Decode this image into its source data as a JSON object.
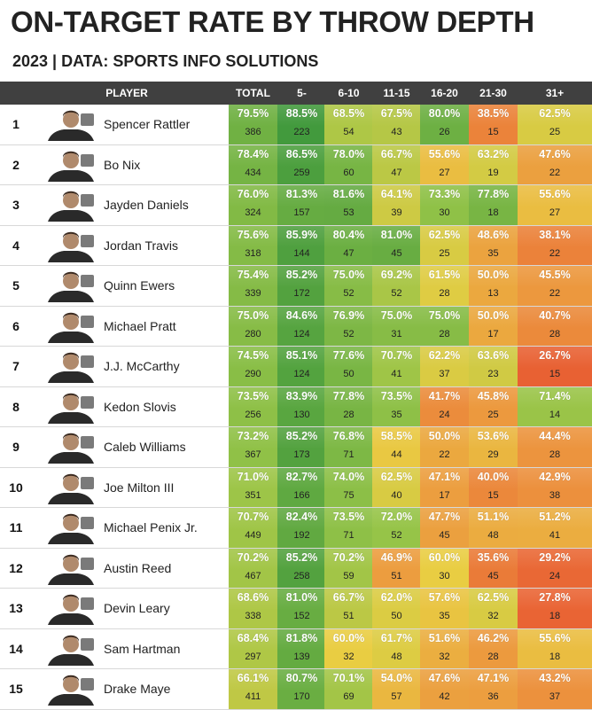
{
  "title": "ON-TARGET RATE BY THROW DEPTH",
  "subtitle": "2023 | DATA: SPORTS INFO SOLUTIONS",
  "chart_data": {
    "type": "table",
    "title": "ON-TARGET RATE BY THROW DEPTH",
    "subtitle": "2023 | DATA: SPORTS INFO SOLUTIONS",
    "player_header": "PLAYER",
    "columns": [
      "TOTAL",
      "5-",
      "6-10",
      "11-15",
      "16-20",
      "21-30",
      "31+"
    ],
    "rows": [
      {
        "rank": "1",
        "player": "Spencer Rattler",
        "team_icon": "south-carolina-logo",
        "pct": [
          "79.5%",
          "88.5%",
          "68.5%",
          "67.5%",
          "80.0%",
          "38.5%",
          "62.5%"
        ],
        "pv": [
          79.5,
          88.5,
          68.5,
          67.5,
          80.0,
          38.5,
          62.5
        ],
        "counts": [
          "386",
          "223",
          "54",
          "43",
          "26",
          "15",
          "25"
        ]
      },
      {
        "rank": "2",
        "player": "Bo Nix",
        "team_icon": "oregon-logo",
        "pct": [
          "78.4%",
          "86.5%",
          "78.0%",
          "66.7%",
          "55.6%",
          "63.2%",
          "47.6%"
        ],
        "pv": [
          78.4,
          86.5,
          78.0,
          66.7,
          55.6,
          63.2,
          47.6
        ],
        "counts": [
          "434",
          "259",
          "60",
          "47",
          "27",
          "19",
          "22"
        ]
      },
      {
        "rank": "3",
        "player": "Jayden Daniels",
        "team_icon": "lsu-logo",
        "pct": [
          "76.0%",
          "81.3%",
          "81.6%",
          "64.1%",
          "73.3%",
          "77.8%",
          "55.6%"
        ],
        "pv": [
          76.0,
          81.3,
          81.6,
          64.1,
          73.3,
          77.8,
          55.6
        ],
        "counts": [
          "324",
          "157",
          "53",
          "39",
          "30",
          "18",
          "27"
        ]
      },
      {
        "rank": "4",
        "player": "Jordan Travis",
        "team_icon": "florida-state-logo",
        "pct": [
          "75.6%",
          "85.9%",
          "80.4%",
          "81.0%",
          "62.5%",
          "48.6%",
          "38.1%"
        ],
        "pv": [
          75.6,
          85.9,
          80.4,
          81.0,
          62.5,
          48.6,
          38.1
        ],
        "counts": [
          "318",
          "144",
          "47",
          "45",
          "25",
          "35",
          "22"
        ]
      },
      {
        "rank": "5",
        "player": "Quinn Ewers",
        "team_icon": "texas-logo",
        "pct": [
          "75.4%",
          "85.2%",
          "75.0%",
          "69.2%",
          "61.5%",
          "50.0%",
          "45.5%"
        ],
        "pv": [
          75.4,
          85.2,
          75.0,
          69.2,
          61.5,
          50.0,
          45.5
        ],
        "counts": [
          "339",
          "172",
          "52",
          "52",
          "28",
          "13",
          "22"
        ]
      },
      {
        "rank": "6",
        "player": "Michael Pratt",
        "team_icon": "tulane-logo",
        "pct": [
          "75.0%",
          "84.6%",
          "76.9%",
          "75.0%",
          "75.0%",
          "50.0%",
          "40.7%"
        ],
        "pv": [
          75.0,
          84.6,
          76.9,
          75.0,
          75.0,
          50.0,
          40.7
        ],
        "counts": [
          "280",
          "124",
          "52",
          "31",
          "28",
          "17",
          "28"
        ]
      },
      {
        "rank": "7",
        "player": "J.J. McCarthy",
        "team_icon": "michigan-logo",
        "pct": [
          "74.5%",
          "85.1%",
          "77.6%",
          "70.7%",
          "62.2%",
          "63.6%",
          "26.7%"
        ],
        "pv": [
          74.5,
          85.1,
          77.6,
          70.7,
          62.2,
          63.6,
          26.7
        ],
        "counts": [
          "290",
          "124",
          "50",
          "41",
          "37",
          "23",
          "15"
        ]
      },
      {
        "rank": "8",
        "player": "Kedon Slovis",
        "team_icon": "byu-logo",
        "pct": [
          "73.5%",
          "83.9%",
          "77.8%",
          "73.5%",
          "41.7%",
          "45.8%",
          "71.4%"
        ],
        "pv": [
          73.5,
          83.9,
          77.8,
          73.5,
          41.7,
          45.8,
          71.4
        ],
        "counts": [
          "256",
          "130",
          "28",
          "35",
          "24",
          "25",
          "14"
        ]
      },
      {
        "rank": "9",
        "player": "Caleb Williams",
        "team_icon": "usc-logo",
        "pct": [
          "73.2%",
          "85.2%",
          "76.8%",
          "58.5%",
          "50.0%",
          "53.6%",
          "44.4%"
        ],
        "pv": [
          73.2,
          85.2,
          76.8,
          58.5,
          50.0,
          53.6,
          44.4
        ],
        "counts": [
          "367",
          "173",
          "71",
          "44",
          "22",
          "29",
          "28"
        ]
      },
      {
        "rank": "10",
        "player": "Joe Milton III",
        "team_icon": "tennessee-logo",
        "pct": [
          "71.0%",
          "82.7%",
          "74.0%",
          "62.5%",
          "47.1%",
          "40.0%",
          "42.9%"
        ],
        "pv": [
          71.0,
          82.7,
          74.0,
          62.5,
          47.1,
          40.0,
          42.9
        ],
        "counts": [
          "351",
          "166",
          "75",
          "40",
          "17",
          "15",
          "38"
        ]
      },
      {
        "rank": "11",
        "player": "Michael Penix Jr.",
        "team_icon": "washington-logo",
        "pct": [
          "70.7%",
          "82.4%",
          "73.5%",
          "72.0%",
          "47.7%",
          "51.1%",
          "51.2%"
        ],
        "pv": [
          70.7,
          82.4,
          73.5,
          72.0,
          47.7,
          51.1,
          51.2
        ],
        "counts": [
          "449",
          "192",
          "71",
          "52",
          "45",
          "48",
          "41"
        ]
      },
      {
        "rank": "12",
        "player": "Austin Reed",
        "team_icon": "western-kentucky-logo",
        "pct": [
          "70.2%",
          "85.2%",
          "70.2%",
          "46.9%",
          "60.0%",
          "35.6%",
          "29.2%"
        ],
        "pv": [
          70.2,
          85.2,
          70.2,
          46.9,
          60.0,
          35.6,
          29.2
        ],
        "counts": [
          "467",
          "258",
          "59",
          "51",
          "30",
          "45",
          "24"
        ]
      },
      {
        "rank": "13",
        "player": "Devin Leary",
        "team_icon": "kentucky-logo",
        "pct": [
          "68.6%",
          "81.0%",
          "66.7%",
          "62.0%",
          "57.6%",
          "62.5%",
          "27.8%"
        ],
        "pv": [
          68.6,
          81.0,
          66.7,
          62.0,
          57.6,
          62.5,
          27.8
        ],
        "counts": [
          "338",
          "152",
          "51",
          "50",
          "35",
          "32",
          "18"
        ]
      },
      {
        "rank": "14",
        "player": "Sam Hartman",
        "team_icon": "notre-dame-logo",
        "pct": [
          "68.4%",
          "81.8%",
          "60.0%",
          "61.7%",
          "51.6%",
          "46.2%",
          "55.6%"
        ],
        "pv": [
          68.4,
          81.8,
          60.0,
          61.7,
          51.6,
          46.2,
          55.6
        ],
        "counts": [
          "297",
          "139",
          "32",
          "48",
          "32",
          "28",
          "18"
        ]
      },
      {
        "rank": "15",
        "player": "Drake Maye",
        "team_icon": "north-carolina-logo",
        "pct": [
          "66.1%",
          "80.7%",
          "70.1%",
          "54.0%",
          "47.6%",
          "47.1%",
          "43.2%"
        ],
        "pv": [
          66.1,
          80.7,
          70.1,
          54.0,
          47.6,
          47.1,
          43.2
        ],
        "counts": [
          "411",
          "170",
          "69",
          "57",
          "42",
          "36",
          "37"
        ]
      }
    ]
  },
  "colors": {
    "header_bg": "#404040",
    "title": "#222222",
    "low": "#e8663a",
    "mid": "#e9c53a",
    "high": "#4e9e45"
  }
}
